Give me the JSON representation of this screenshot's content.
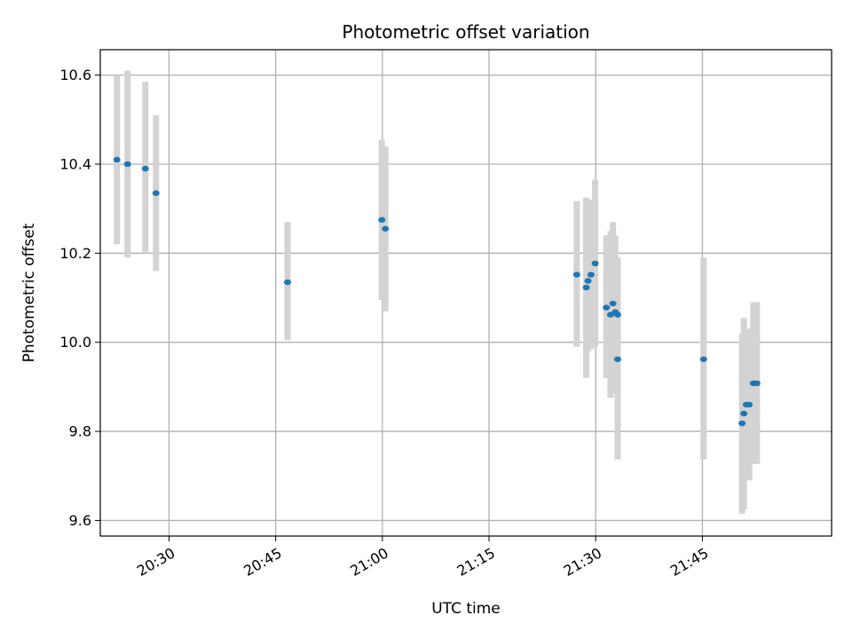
{
  "chart_data": {
    "type": "scatter",
    "title": "Photometric offset variation",
    "xlabel": "UTC time",
    "ylabel": "Photometric offset",
    "x_tick_labels": [
      "20:30",
      "20:45",
      "21:00",
      "21:15",
      "21:30",
      "21:45"
    ],
    "y_tick_labels": [
      "9.6",
      "9.8",
      "10.0",
      "10.2",
      "10.4",
      "10.6"
    ],
    "xlim": [
      "20:20:20",
      "22:03:10"
    ],
    "ylim": [
      9.565,
      10.657
    ],
    "grid": true,
    "point_color": "#1f77b4",
    "errorbar_color": "#d3d3d3",
    "points": [
      {
        "x": "20:22:40",
        "y": 10.41,
        "err_low": 10.22,
        "err_high": 10.6
      },
      {
        "x": "20:24:10",
        "y": 10.4,
        "err_low": 10.19,
        "err_high": 10.61
      },
      {
        "x": "20:26:40",
        "y": 10.39,
        "err_low": 10.2,
        "err_high": 10.585
      },
      {
        "x": "20:28:10",
        "y": 10.335,
        "err_low": 10.16,
        "err_high": 10.51
      },
      {
        "x": "20:46:40",
        "y": 10.135,
        "err_low": 10.005,
        "err_high": 10.27
      },
      {
        "x": "20:59:55",
        "y": 10.275,
        "err_low": 10.095,
        "err_high": 10.455
      },
      {
        "x": "21:00:25",
        "y": 10.255,
        "err_low": 10.07,
        "err_high": 10.44
      },
      {
        "x": "21:27:20",
        "y": 10.152,
        "err_low": 9.99,
        "err_high": 10.317
      },
      {
        "x": "21:28:40",
        "y": 10.123,
        "err_low": 9.92,
        "err_high": 10.325
      },
      {
        "x": "21:28:55",
        "y": 10.138,
        "err_low": 9.98,
        "err_high": 10.32
      },
      {
        "x": "21:29:20",
        "y": 10.152,
        "err_low": 9.985,
        "err_high": 10.32
      },
      {
        "x": "21:29:55",
        "y": 10.177,
        "err_low": 9.99,
        "err_high": 10.365
      },
      {
        "x": "21:31:30",
        "y": 10.078,
        "err_low": 9.92,
        "err_high": 10.24
      },
      {
        "x": "21:32:05",
        "y": 10.062,
        "err_low": 9.875,
        "err_high": 10.25
      },
      {
        "x": "21:32:25",
        "y": 10.087,
        "err_low": 9.885,
        "err_high": 10.27
      },
      {
        "x": "21:32:45",
        "y": 10.068,
        "err_low": 9.89,
        "err_high": 10.24
      },
      {
        "x": "21:33:05",
        "y": 10.062,
        "err_low": 9.89,
        "err_high": 10.19
      },
      {
        "x": "21:33:05",
        "y": 9.962,
        "err_low": 9.737,
        "err_high": 10.19
      },
      {
        "x": "21:45:10",
        "y": 9.962,
        "err_low": 9.737,
        "err_high": 10.19
      },
      {
        "x": "21:50:35",
        "y": 9.818,
        "err_low": 9.615,
        "err_high": 10.02
      },
      {
        "x": "21:50:50",
        "y": 9.84,
        "err_low": 9.625,
        "err_high": 10.055
      },
      {
        "x": "21:51:10",
        "y": 9.86,
        "err_low": 9.69,
        "err_high": 10.03
      },
      {
        "x": "21:51:35",
        "y": 9.86,
        "err_low": 9.69,
        "err_high": 10.03
      },
      {
        "x": "21:52:10",
        "y": 9.908,
        "err_low": 9.727,
        "err_high": 10.09
      },
      {
        "x": "21:52:40",
        "y": 9.908,
        "err_low": 9.727,
        "err_high": 10.09
      }
    ]
  }
}
